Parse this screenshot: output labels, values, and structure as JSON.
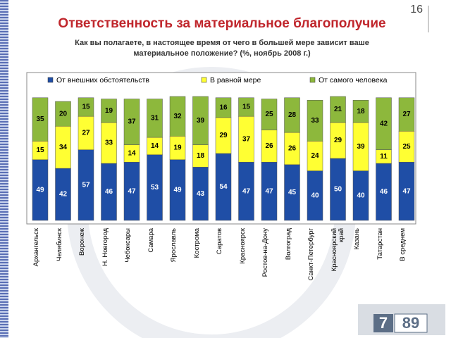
{
  "page_number": "16",
  "chart_data": {
    "type": "stacked_bar",
    "title": "Ответственность за материальное благополучие",
    "subtitle": "Как вы полагаете, в настоящее время от чего в  большей мере зависит ваше материальное положение? (%,  ноябрь  2008 г.)",
    "categories": [
      "Архангельск",
      "Челябинск",
      "Воронеж",
      "Н. Новгород",
      "Чебоксары",
      "Самара",
      "Ярославль",
      "Кострома",
      "Саратов",
      "Красноярск",
      "Ростов-на-Дону",
      "Волгоград",
      "Санкт-Петербург",
      "Красноярский край",
      "Казань",
      "Татарстан",
      "В среднем"
    ],
    "series": [
      {
        "name": "От внешних обстоятельств",
        "color": "#1f4ea6",
        "values": [
          49,
          42,
          57,
          46,
          47,
          53,
          49,
          43,
          54,
          47,
          47,
          45,
          40,
          50,
          40,
          46,
          47
        ]
      },
      {
        "name": "В равной мере",
        "color": "#ffff33",
        "values": [
          15,
          34,
          27,
          33,
          14,
          14,
          19,
          18,
          29,
          37,
          26,
          26,
          24,
          29,
          39,
          11,
          25
        ]
      },
      {
        "name": "От самого человека",
        "color": "#8db83c",
        "values": [
          35,
          20,
          15,
          19,
          37,
          31,
          32,
          39,
          16,
          15,
          25,
          28,
          33,
          21,
          18,
          42,
          27
        ]
      }
    ],
    "legend": "top"
  },
  "logo": {
    "left": "7",
    "right": "89"
  }
}
